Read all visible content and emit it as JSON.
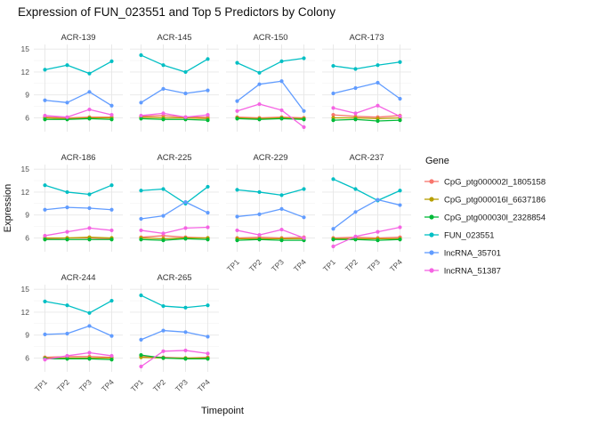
{
  "chart_data": {
    "type": "line",
    "title": "Expression of FUN_023551 and Top 5 Predictors by Colony",
    "xlabel": "Timepoint",
    "ylabel": "Expression",
    "legend_title": "Gene",
    "legend_position": "right",
    "grid": true,
    "x": [
      "TP1",
      "TP2",
      "TP3",
      "TP4"
    ],
    "ylim": [
      4.2,
      15.6
    ],
    "y_ticks": [
      6,
      9,
      12,
      15
    ],
    "y_minor": [
      7.5,
      10.5,
      13.5
    ],
    "genes": [
      {
        "name": "CpG_ptg000002l_1805158",
        "color": "#F8766D"
      },
      {
        "name": "CpG_ptg000016l_6637186",
        "color": "#B79F00"
      },
      {
        "name": "CpG_ptg000030l_2328854",
        "color": "#00BA38"
      },
      {
        "name": "FUN_023551",
        "color": "#00BFC4"
      },
      {
        "name": "lncRNA_35701",
        "color": "#619CFF"
      },
      {
        "name": "lncRNA_51387",
        "color": "#F564E3"
      }
    ],
    "facets": [
      {
        "name": "ACR-139",
        "values": {
          "CpG_ptg000002l_1805158": [
            6.1,
            6.0,
            6.1,
            6.1
          ],
          "CpG_ptg000016l_6637186": [
            6.0,
            5.9,
            6.0,
            6.0
          ],
          "CpG_ptg000030l_2328854": [
            5.8,
            5.8,
            5.9,
            5.8
          ],
          "FUN_023551": [
            12.3,
            12.9,
            11.8,
            13.4
          ],
          "lncRNA_35701": [
            8.3,
            8.0,
            9.4,
            7.6
          ],
          "lncRNA_51387": [
            6.3,
            6.1,
            7.1,
            6.4
          ]
        }
      },
      {
        "name": "ACR-145",
        "values": {
          "CpG_ptg000002l_1805158": [
            6.2,
            6.3,
            6.1,
            6.1
          ],
          "CpG_ptg000016l_6637186": [
            6.1,
            6.0,
            6.0,
            5.9
          ],
          "CpG_ptg000030l_2328854": [
            5.9,
            5.8,
            5.8,
            5.7
          ],
          "FUN_023551": [
            14.2,
            12.9,
            12.0,
            13.7
          ],
          "lncRNA_35701": [
            8.0,
            9.8,
            9.2,
            9.6
          ],
          "lncRNA_51387": [
            6.3,
            6.6,
            6.1,
            6.4
          ]
        }
      },
      {
        "name": "ACR-150",
        "values": {
          "CpG_ptg000002l_1805158": [
            6.1,
            6.0,
            6.1,
            6.0
          ],
          "CpG_ptg000016l_6637186": [
            6.0,
            5.9,
            6.0,
            5.9
          ],
          "CpG_ptg000030l_2328854": [
            5.9,
            5.8,
            5.9,
            5.8
          ],
          "FUN_023551": [
            13.2,
            11.9,
            13.4,
            13.8
          ],
          "lncRNA_35701": [
            8.2,
            10.4,
            10.8,
            6.9
          ],
          "lncRNA_51387": [
            6.9,
            7.8,
            7.0,
            4.8
          ]
        }
      },
      {
        "name": "ACR-173",
        "values": {
          "CpG_ptg000002l_1805158": [
            6.4,
            6.2,
            6.1,
            6.3
          ],
          "CpG_ptg000016l_6637186": [
            6.0,
            6.0,
            5.9,
            6.0
          ],
          "CpG_ptg000030l_2328854": [
            5.7,
            5.8,
            5.6,
            5.7
          ],
          "FUN_023551": [
            12.8,
            12.4,
            12.9,
            13.3
          ],
          "lncRNA_35701": [
            9.2,
            9.9,
            10.6,
            8.5
          ],
          "lncRNA_51387": [
            7.3,
            6.6,
            7.6,
            6.2
          ]
        }
      },
      {
        "name": "ACR-186",
        "values": {
          "CpG_ptg000002l_1805158": [
            5.9,
            6.0,
            6.0,
            5.9
          ],
          "CpG_ptg000016l_6637186": [
            6.0,
            6.0,
            6.1,
            6.0
          ],
          "CpG_ptg000030l_2328854": [
            5.8,
            5.8,
            5.8,
            5.8
          ],
          "FUN_023551": [
            12.9,
            12.0,
            11.7,
            12.9
          ],
          "lncRNA_35701": [
            9.7,
            10.0,
            9.9,
            9.7
          ],
          "lncRNA_51387": [
            6.3,
            6.8,
            7.3,
            7.0
          ]
        }
      },
      {
        "name": "ACR-225",
        "values": {
          "CpG_ptg000002l_1805158": [
            6.1,
            6.3,
            6.1,
            6.0
          ],
          "CpG_ptg000016l_6637186": [
            6.0,
            5.9,
            6.0,
            6.0
          ],
          "CpG_ptg000030l_2328854": [
            5.8,
            5.7,
            5.9,
            5.8
          ],
          "FUN_023551": [
            12.2,
            12.4,
            10.5,
            12.7
          ],
          "lncRNA_35701": [
            8.5,
            8.9,
            10.7,
            9.3
          ],
          "lncRNA_51387": [
            7.0,
            6.6,
            7.3,
            7.4
          ]
        }
      },
      {
        "name": "ACR-229",
        "values": {
          "CpG_ptg000002l_1805158": [
            6.0,
            6.1,
            6.0,
            6.1
          ],
          "CpG_ptg000016l_6637186": [
            5.9,
            5.9,
            5.9,
            5.9
          ],
          "CpG_ptg000030l_2328854": [
            5.7,
            5.8,
            5.7,
            5.7
          ],
          "FUN_023551": [
            12.3,
            12.0,
            11.6,
            12.4
          ],
          "lncRNA_35701": [
            8.8,
            9.1,
            9.8,
            8.7
          ],
          "lncRNA_51387": [
            7.0,
            6.4,
            7.1,
            6.0
          ]
        }
      },
      {
        "name": "ACR-237",
        "values": {
          "CpG_ptg000002l_1805158": [
            6.0,
            6.1,
            6.0,
            6.1
          ],
          "CpG_ptg000016l_6637186": [
            5.9,
            5.9,
            5.9,
            5.9
          ],
          "CpG_ptg000030l_2328854": [
            5.8,
            5.8,
            5.7,
            5.8
          ],
          "FUN_023551": [
            13.7,
            12.4,
            10.9,
            12.2
          ],
          "lncRNA_35701": [
            7.2,
            9.4,
            11.0,
            10.3
          ],
          "lncRNA_51387": [
            4.9,
            6.2,
            6.8,
            7.4
          ]
        }
      },
      {
        "name": "ACR-244",
        "values": {
          "CpG_ptg000002l_1805158": [
            6.1,
            6.2,
            6.2,
            6.1
          ],
          "CpG_ptg000016l_6637186": [
            6.0,
            6.0,
            6.0,
            6.0
          ],
          "CpG_ptg000030l_2328854": [
            5.9,
            5.9,
            5.9,
            5.8
          ],
          "FUN_023551": [
            13.4,
            12.9,
            11.9,
            13.5
          ],
          "lncRNA_35701": [
            9.1,
            9.2,
            10.2,
            8.9
          ],
          "lncRNA_51387": [
            5.8,
            6.3,
            6.7,
            6.3
          ]
        }
      },
      {
        "name": "ACR-265",
        "values": {
          "CpG_ptg000002l_1805158": [
            6.2,
            6.1,
            6.0,
            6.1
          ],
          "CpG_ptg000016l_6637186": [
            6.1,
            6.0,
            6.0,
            6.0
          ],
          "CpG_ptg000030l_2328854": [
            6.4,
            6.0,
            5.9,
            5.9
          ],
          "FUN_023551": [
            14.2,
            12.8,
            12.6,
            12.9
          ],
          "lncRNA_35701": [
            8.4,
            9.6,
            9.4,
            8.8
          ],
          "lncRNA_51387": [
            4.9,
            6.9,
            7.0,
            6.6
          ]
        }
      }
    ]
  }
}
